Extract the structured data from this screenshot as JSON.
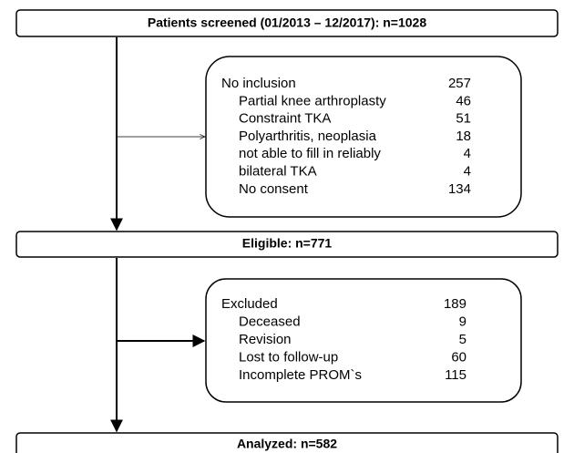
{
  "boxes": [
    {
      "label": "Patients screened (01/2013 – 12/2017): n=1028"
    },
    {
      "label": "Eligible: n=771"
    },
    {
      "label": "Analyzed: n=582"
    }
  ],
  "exclusions": [
    {
      "title": "No inclusion",
      "count": 257,
      "items": [
        {
          "label": "Partial knee arthroplasty",
          "count": 46
        },
        {
          "label": "Constraint TKA",
          "count": 51
        },
        {
          "label": "Polyarthritis, neoplasia",
          "count": 18
        },
        {
          "label": "not able to fill in reliably",
          "count": 4
        },
        {
          "label": "bilateral TKA",
          "count": 4
        },
        {
          "label": "No consent",
          "count": 134
        }
      ]
    },
    {
      "title": "Excluded",
      "count": 189,
      "items": [
        {
          "label": "Deceased",
          "count": 9
        },
        {
          "label": "Revision",
          "count": 5
        },
        {
          "label": "Lost to follow-up",
          "count": 60
        },
        {
          "label": "Incomplete PROM`s",
          "count": 115
        }
      ]
    }
  ]
}
